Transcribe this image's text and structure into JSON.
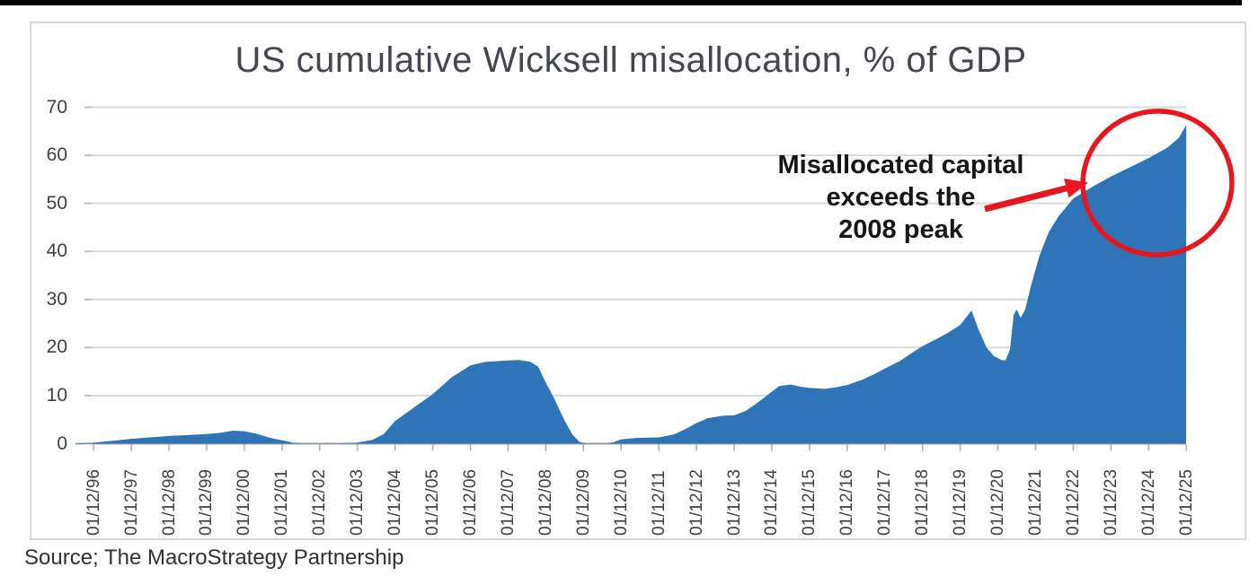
{
  "chart_data": {
    "type": "area",
    "title": "US cumulative Wicksell misallocation, % of GDP",
    "xlabel": "",
    "ylabel": "",
    "ylim": [
      0,
      70
    ],
    "grid": "horizontal",
    "legend_position": "none",
    "y_axis": {
      "ticks": [
        0,
        10,
        20,
        30,
        40,
        50,
        60,
        70
      ]
    },
    "x_axis": {
      "labels": [
        "01/12/96",
        "01/12/97",
        "01/12/98",
        "01/12/99",
        "01/12/00",
        "01/12/01",
        "01/12/02",
        "01/12/03",
        "01/12/04",
        "01/12/05",
        "01/12/06",
        "01/12/07",
        "01/12/08",
        "01/12/09",
        "01/12/10",
        "01/12/11",
        "01/12/12",
        "01/12/13",
        "01/12/14",
        "01/12/15",
        "01/12/16",
        "01/12/17",
        "01/12/18",
        "01/12/19",
        "01/12/20",
        "01/12/21",
        "01/12/22",
        "01/12/23",
        "01/12/24",
        "01/12/25"
      ]
    },
    "series": [
      {
        "name": "US cumulative Wicksell misallocation, % of GDP",
        "color": "#2F74B7",
        "values_at_labels": [
          0.2,
          1.0,
          1.6,
          2.0,
          2.6,
          0.7,
          0.1,
          0.2,
          4.7,
          10.3,
          16.3,
          17.3,
          12.7,
          0.1,
          0.9,
          1.3,
          4.3,
          5.9,
          10.8,
          11.6,
          12.2,
          15.6,
          20.3,
          24.7,
          17.4,
          36.2,
          51.0,
          55.6,
          59.4,
          66.3
        ],
        "points_year_index_value": [
          [
            -0.48,
            0.05
          ],
          [
            0,
            0.2
          ],
          [
            0.5,
            0.6
          ],
          [
            1,
            1.0
          ],
          [
            1.5,
            1.3
          ],
          [
            2,
            1.6
          ],
          [
            2.5,
            1.8
          ],
          [
            3,
            2.0
          ],
          [
            3.4,
            2.3
          ],
          [
            3.7,
            2.7
          ],
          [
            4,
            2.6
          ],
          [
            4.3,
            2.1
          ],
          [
            4.7,
            1.2
          ],
          [
            5,
            0.7
          ],
          [
            5.3,
            0.2
          ],
          [
            5.6,
            0.05
          ],
          [
            6.5,
            0.05
          ],
          [
            7,
            0.2
          ],
          [
            7.4,
            0.8
          ],
          [
            7.7,
            2.0
          ],
          [
            8,
            4.7
          ],
          [
            8.5,
            7.5
          ],
          [
            9,
            10.3
          ],
          [
            9.5,
            13.8
          ],
          [
            10,
            16.3
          ],
          [
            10.4,
            17.0
          ],
          [
            11,
            17.3
          ],
          [
            11.3,
            17.4
          ],
          [
            11.6,
            17.0
          ],
          [
            11.8,
            16.0
          ],
          [
            12,
            12.7
          ],
          [
            12.2,
            9.8
          ],
          [
            12.5,
            4.8
          ],
          [
            12.7,
            2.0
          ],
          [
            12.9,
            0.3
          ],
          [
            13.1,
            0.05
          ],
          [
            13.6,
            0.05
          ],
          [
            13.8,
            0.3
          ],
          [
            14,
            0.9
          ],
          [
            14.4,
            1.2
          ],
          [
            15,
            1.3
          ],
          [
            15.4,
            1.9
          ],
          [
            15.7,
            3.0
          ],
          [
            16,
            4.3
          ],
          [
            16.3,
            5.3
          ],
          [
            16.7,
            5.8
          ],
          [
            17,
            5.9
          ],
          [
            17.3,
            6.8
          ],
          [
            17.6,
            8.4
          ],
          [
            18,
            10.8
          ],
          [
            18.2,
            12.0
          ],
          [
            18.5,
            12.3
          ],
          [
            18.8,
            11.8
          ],
          [
            19,
            11.6
          ],
          [
            19.4,
            11.4
          ],
          [
            19.7,
            11.7
          ],
          [
            20,
            12.2
          ],
          [
            20.4,
            13.3
          ],
          [
            20.7,
            14.4
          ],
          [
            21,
            15.6
          ],
          [
            21.4,
            17.2
          ],
          [
            21.7,
            18.8
          ],
          [
            22,
            20.3
          ],
          [
            22.4,
            21.9
          ],
          [
            22.7,
            23.2
          ],
          [
            23,
            24.7
          ],
          [
            23.15,
            26.2
          ],
          [
            23.3,
            27.7
          ],
          [
            23.5,
            23.5
          ],
          [
            23.7,
            20.0
          ],
          [
            23.9,
            18.2
          ],
          [
            24.1,
            17.4
          ],
          [
            24.2,
            17.3
          ],
          [
            24.32,
            19.5
          ],
          [
            24.42,
            26.8
          ],
          [
            24.5,
            27.9
          ],
          [
            24.6,
            26.2
          ],
          [
            24.72,
            27.8
          ],
          [
            24.9,
            33.5
          ],
          [
            25.1,
            39.0
          ],
          [
            25.35,
            44.0
          ],
          [
            25.6,
            47.2
          ],
          [
            26,
            51.0
          ],
          [
            26.5,
            53.4
          ],
          [
            27,
            55.6
          ],
          [
            27.5,
            57.5
          ],
          [
            28,
            59.4
          ],
          [
            28.5,
            61.6
          ],
          [
            28.8,
            63.6
          ],
          [
            29,
            66.3
          ]
        ]
      }
    ],
    "annotation": {
      "line1": "Misallocated capital",
      "line2": "exceeds the",
      "line3": "2008 peak",
      "highlight": "red circle around final peak, red arrow pointing at curve"
    },
    "colors": {
      "area_fill": "#2F74B7",
      "annotation_red": "#E8161E",
      "gridline": "#D9D9D9",
      "axis_line": "#A6A6A6",
      "tick_label": "#404040",
      "title_text": "#45474E",
      "top_bar": "#000000"
    }
  },
  "source_note": "Source; The MacroStrategy Partnership"
}
